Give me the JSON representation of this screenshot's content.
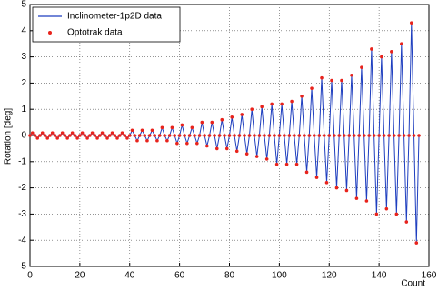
{
  "chart_data": {
    "type": "line_scatter",
    "xlabel": "Count",
    "ylabel": "Rotation [deg]",
    "xlim": [
      0,
      160
    ],
    "xticks": [
      0,
      20,
      40,
      60,
      80,
      100,
      120,
      140,
      160
    ],
    "ylim": [
      -5,
      5
    ],
    "yticks": [
      -5,
      -4,
      -3,
      -2,
      -1,
      0,
      1,
      2,
      3,
      4,
      5
    ],
    "grid": true,
    "legend": "upper-left",
    "x": [
      0,
      1,
      2,
      3,
      4,
      5,
      6,
      7,
      8,
      9,
      10,
      11,
      12,
      13,
      14,
      15,
      16,
      17,
      18,
      19,
      20,
      21,
      22,
      23,
      24,
      25,
      26,
      27,
      28,
      29,
      30,
      31,
      32,
      33,
      34,
      35,
      36,
      37,
      38,
      39,
      40,
      41,
      42,
      43,
      44,
      45,
      46,
      47,
      48,
      49,
      50,
      51,
      52,
      53,
      54,
      55,
      56,
      57,
      58,
      59,
      60,
      61,
      62,
      63,
      64,
      65,
      66,
      67,
      68,
      69,
      70,
      71,
      72,
      73,
      74,
      75,
      76,
      77,
      78,
      79,
      80,
      81,
      82,
      83,
      84,
      85,
      86,
      87,
      88,
      89,
      90,
      91,
      92,
      93,
      94,
      95,
      96,
      97,
      98,
      99,
      100,
      101,
      102,
      103,
      104,
      105,
      106,
      107,
      108,
      109,
      110,
      111,
      112,
      113,
      114,
      115,
      116,
      117,
      118,
      119,
      120,
      121,
      122,
      123,
      124,
      125,
      126,
      127,
      128,
      129,
      130,
      131,
      132,
      133,
      134,
      135,
      136,
      137,
      138,
      139,
      140,
      141,
      142,
      143,
      144,
      145,
      146,
      147,
      148,
      149,
      150,
      151,
      152,
      153,
      154,
      155,
      156
    ],
    "series": [
      {
        "name": "Inclinometer-1p2D data",
        "color": "#1f3fbf",
        "mark": "line",
        "values": [
          0,
          0.1,
          0,
          -0.1,
          0,
          0.1,
          0,
          -0.1,
          0,
          0.1,
          0,
          -0.1,
          0,
          0.1,
          0,
          -0.1,
          0,
          0.1,
          0,
          -0.1,
          0,
          0.1,
          0,
          -0.1,
          0,
          0.1,
          0,
          -0.1,
          0,
          0.1,
          0,
          -0.1,
          0,
          0.1,
          0,
          -0.1,
          0,
          0.1,
          0,
          -0.1,
          0,
          0.2,
          0,
          -0.2,
          0,
          0.2,
          0,
          -0.2,
          0,
          0.2,
          0,
          -0.2,
          0,
          0.3,
          0,
          -0.2,
          0,
          0.3,
          0,
          -0.3,
          0,
          0.4,
          0,
          -0.3,
          0,
          0.3,
          0,
          -0.3,
          0,
          0.5,
          0,
          -0.4,
          0,
          0.5,
          0,
          -0.5,
          0,
          0.6,
          0,
          -0.5,
          0,
          0.7,
          0,
          -0.6,
          0,
          0.8,
          0,
          -0.7,
          0,
          1.0,
          0,
          -0.8,
          0,
          1.1,
          0,
          -0.9,
          0,
          1.2,
          0,
          -1.1,
          0,
          1.2,
          0,
          -1.1,
          0,
          1.3,
          0,
          -1.1,
          0,
          1.5,
          0,
          -1.4,
          0,
          1.8,
          0,
          -1.6,
          0,
          2.2,
          0,
          -1.8,
          0,
          2.1,
          0,
          -2.0,
          0,
          2.1,
          0,
          -2.1,
          0,
          2.3,
          0,
          -2.4,
          0,
          2.6,
          0,
          -2.5,
          0,
          3.3,
          0,
          -3.0,
          0,
          3.0,
          0,
          -2.8,
          0,
          3.2,
          0,
          -3.0,
          0,
          3.5,
          0,
          -3.3,
          0,
          4.3,
          0,
          -4.1,
          0
        ]
      },
      {
        "name": "Optotrak data",
        "color": "#e8231c",
        "mark": "dot",
        "values": [
          0,
          0.1,
          0,
          -0.1,
          0,
          0.1,
          0,
          -0.1,
          0,
          0.1,
          0,
          -0.1,
          0,
          0.1,
          0,
          -0.1,
          0,
          0.1,
          0,
          -0.1,
          0,
          0.1,
          0,
          -0.1,
          0,
          0.1,
          0,
          -0.1,
          0,
          0.1,
          0,
          -0.1,
          0,
          0.1,
          0,
          -0.1,
          0,
          0.1,
          0,
          -0.1,
          0,
          0.2,
          0,
          -0.2,
          0,
          0.2,
          0,
          -0.2,
          0,
          0.2,
          0,
          -0.2,
          0,
          0.3,
          0,
          -0.2,
          0,
          0.3,
          0,
          -0.3,
          0,
          0.4,
          0,
          -0.3,
          0,
          0.3,
          0,
          -0.3,
          0,
          0.5,
          0,
          -0.4,
          0,
          0.5,
          0,
          -0.5,
          0,
          0.6,
          0,
          -0.5,
          0,
          0.7,
          0,
          -0.6,
          0,
          0.8,
          0,
          -0.7,
          0,
          1.0,
          0,
          -0.8,
          0,
          1.1,
          0,
          -0.9,
          0,
          1.2,
          0,
          -1.1,
          0,
          1.2,
          0,
          -1.1,
          0,
          1.3,
          0,
          -1.1,
          0,
          1.5,
          0,
          -1.4,
          0,
          1.8,
          0,
          -1.6,
          0,
          2.2,
          0,
          -1.8,
          0,
          2.1,
          0,
          -2.0,
          0,
          2.1,
          0,
          -2.1,
          0,
          2.3,
          0,
          -2.4,
          0,
          2.6,
          0,
          -2.5,
          0,
          3.3,
          0,
          -3.0,
          0,
          3.0,
          0,
          -2.8,
          0,
          3.2,
          0,
          -3.0,
          0,
          3.5,
          0,
          -3.3,
          0,
          4.3,
          0,
          -4.1,
          0
        ]
      }
    ]
  }
}
